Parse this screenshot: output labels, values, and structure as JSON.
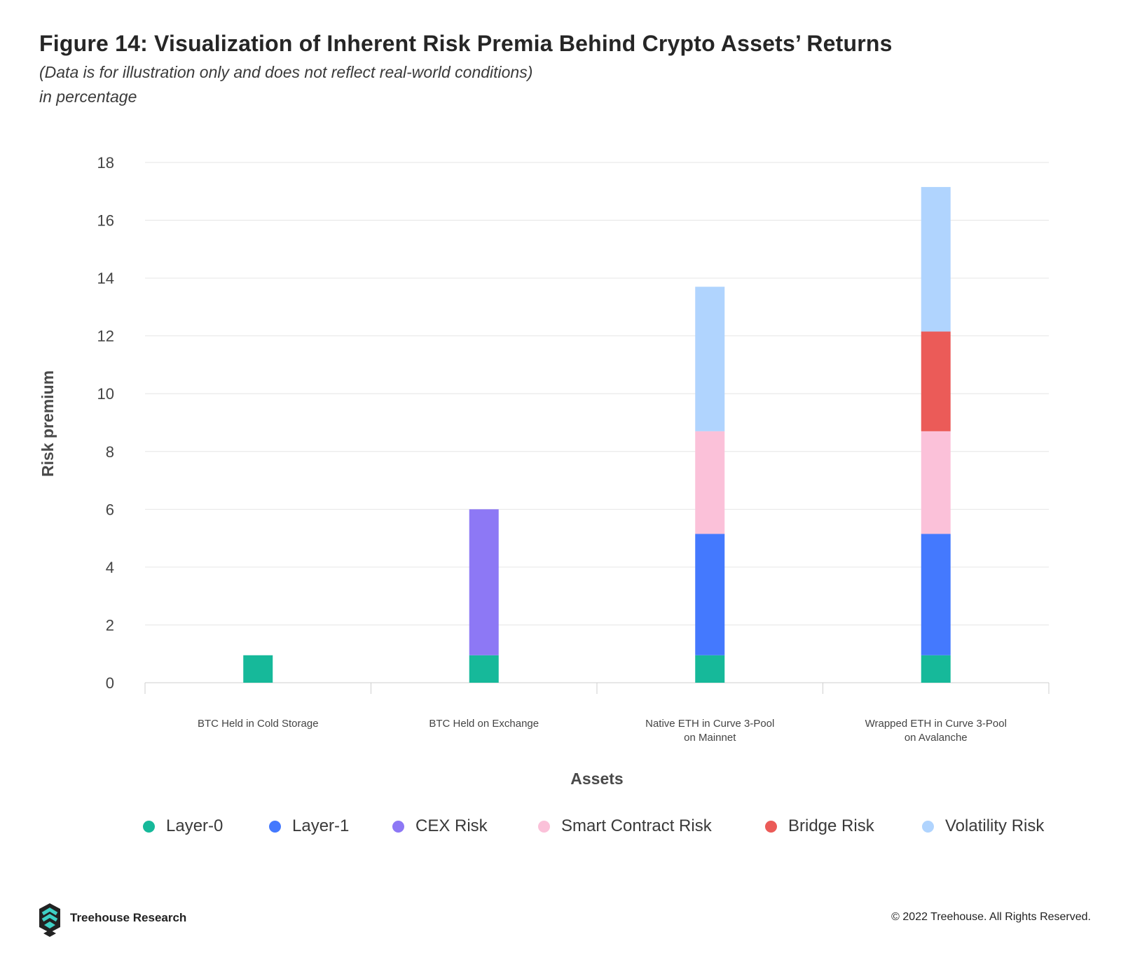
{
  "header": {
    "title": "Figure 14:  Visualization of Inherent Risk Premia Behind Crypto Assets’ Returns",
    "subtitle": "(Data is for illustration only and does not reflect real-world conditions)",
    "units": "in percentage"
  },
  "chart_data": {
    "type": "bar",
    "stacked": true,
    "categories": [
      [
        "BTC Held in Cold Storage"
      ],
      [
        "BTC Held on Exchange"
      ],
      [
        "Native ETH in Curve 3-Pool",
        "on Mainnet"
      ],
      [
        "Wrapped ETH in Curve 3-Pool",
        "on Avalanche"
      ]
    ],
    "series": [
      {
        "name": "Layer-0",
        "color": "#16b99a",
        "values": [
          0.95,
          0.95,
          0.95,
          0.95
        ]
      },
      {
        "name": "Layer-1",
        "color": "#4479fe",
        "values": [
          0,
          0,
          4.2,
          4.2
        ]
      },
      {
        "name": "CEX Risk",
        "color": "#8d78f5",
        "values": [
          0,
          5.05,
          0,
          0
        ]
      },
      {
        "name": "Smart Contract Risk",
        "color": "#fbc1d9",
        "values": [
          0,
          0,
          3.55,
          3.55
        ]
      },
      {
        "name": "Bridge Risk",
        "color": "#eb5b58",
        "values": [
          0,
          0,
          0,
          3.45
        ]
      },
      {
        "name": "Volatility Risk",
        "color": "#b0d4fe",
        "values": [
          0,
          0,
          5.0,
          5.0
        ]
      }
    ],
    "xlabel": "Assets",
    "ylabel": "Risk premium",
    "ylim": [
      0,
      18
    ],
    "yticks": [
      0,
      2,
      4,
      6,
      8,
      10,
      12,
      14,
      16,
      18
    ],
    "grid": true,
    "legend_position": "bottom"
  },
  "footer": {
    "brand": "Treehouse Research",
    "copyright": "© 2022 Treehouse. All Rights Reserved.",
    "logo_icon": "treehouse-hexagon-logo"
  }
}
